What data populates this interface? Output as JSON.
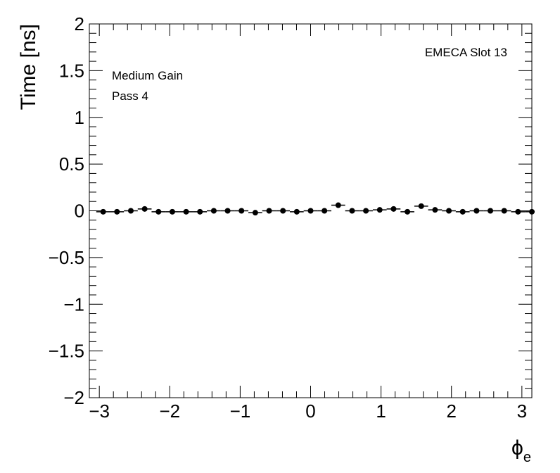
{
  "chart_data": {
    "type": "scatter",
    "title": "",
    "xlabel": "ϕ",
    "xlabel_sub": "e",
    "ylabel": "Time [ns]",
    "xlim": [
      -3.1416,
      3.1416
    ],
    "ylim": [
      -2,
      2
    ],
    "xticks": [
      -3,
      -2,
      -1,
      0,
      1,
      2,
      3
    ],
    "xtick_labels": [
      "−3",
      "−2",
      "−1",
      "0",
      "1",
      "2",
      "3"
    ],
    "yticks": [
      -2,
      -1.5,
      -1,
      -0.5,
      0,
      0.5,
      1,
      1.5,
      2
    ],
    "ytick_labels": [
      "−2",
      "−1.5",
      "−1",
      "−0.5",
      "0",
      "0.5",
      "1",
      "1.5",
      "2"
    ],
    "annotations": [
      "EMECA Slot 13",
      "Medium Gain",
      "Pass 4"
    ],
    "marker_color": "#000000",
    "grid": false,
    "series": [
      {
        "x_bin_width": 0.19635,
        "x": [
          -2.9452,
          -2.7489,
          -2.5525,
          -2.3562,
          -2.1598,
          -1.9635,
          -1.7671,
          -1.5708,
          -1.3744,
          -1.1781,
          -0.9817,
          -0.7854,
          -0.589,
          -0.3927,
          -0.1963,
          0.0,
          0.1963,
          0.3927,
          0.589,
          0.7854,
          0.9817,
          1.1781,
          1.3744,
          1.5708,
          1.7671,
          1.9635,
          2.1598,
          2.3562,
          2.5525,
          2.7489,
          2.9452,
          3.1416
        ],
        "y": [
          -0.01,
          -0.01,
          0.0,
          0.02,
          -0.01,
          -0.01,
          -0.01,
          -0.01,
          0.0,
          0.0,
          0.0,
          -0.02,
          0.0,
          0.0,
          -0.01,
          0.0,
          0.0,
          0.06,
          0.0,
          0.0,
          0.01,
          0.02,
          -0.01,
          0.05,
          0.01,
          0.0,
          -0.01,
          0.0,
          0.0,
          0.0,
          -0.01,
          -0.01
        ]
      }
    ]
  }
}
